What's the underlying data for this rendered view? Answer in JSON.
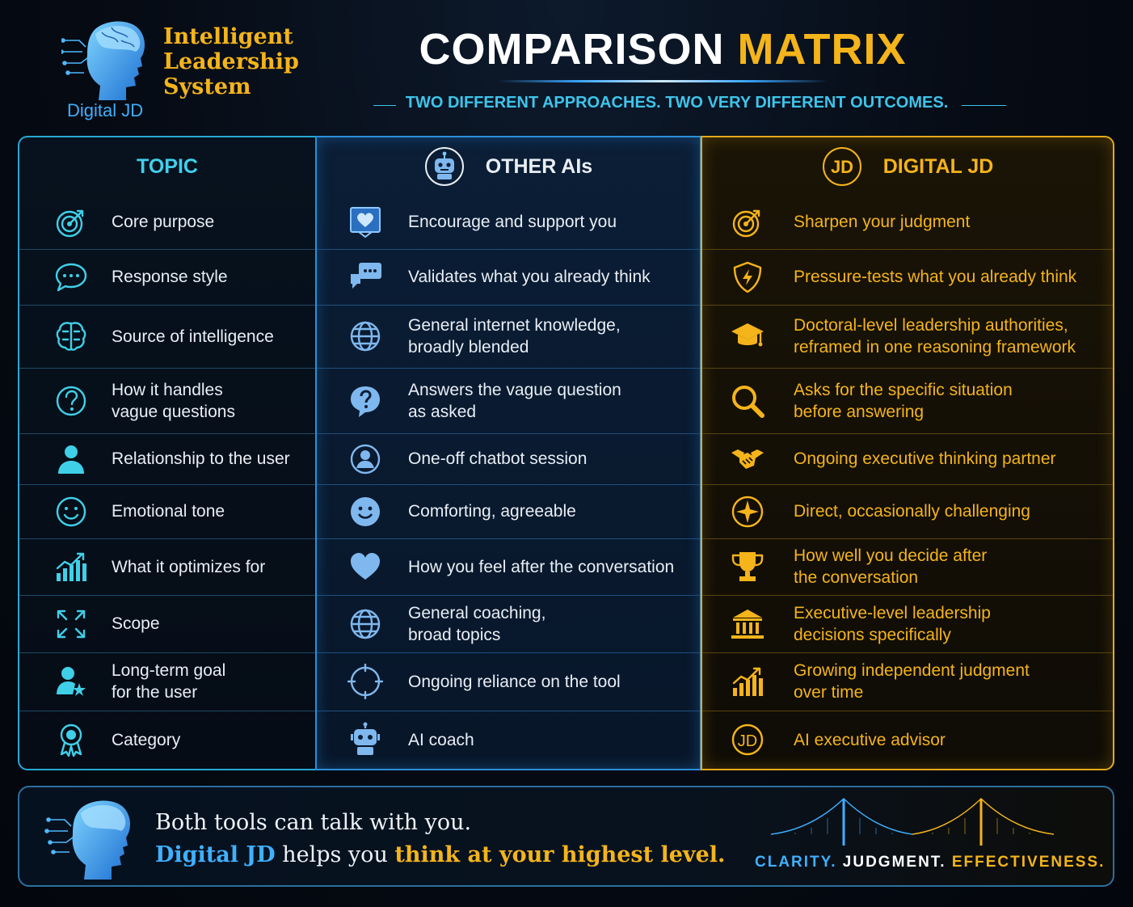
{
  "brand": {
    "title_line1": "Intelligent",
    "title_line2": "Leadership",
    "title_line3": "System",
    "subtitle": "Digital JD"
  },
  "header": {
    "title_main": "COMPARISON",
    "title_accent": "MATRIX",
    "subtitle": "TWO DIFFERENT APPROACHES. TWO VERY DIFFERENT OUTCOMES."
  },
  "columns": {
    "topic": "TOPIC",
    "other": "OTHER AIs",
    "jd": "DIGITAL JD",
    "jd_badge": "JD"
  },
  "rows": [
    {
      "topic": [
        "Core purpose"
      ],
      "topic_icon": "target-icon",
      "other": [
        "Encourage and support you"
      ],
      "other_icon": "heart-message-icon",
      "jd": [
        "Sharpen your judgment"
      ],
      "jd_icon": "target-icon"
    },
    {
      "topic": [
        "Response style"
      ],
      "topic_icon": "chat-bubble-icon",
      "other": [
        "Validates what you already think"
      ],
      "other_icon": "chat-bubbles-icon",
      "jd": [
        "Pressure-tests what you already think"
      ],
      "jd_icon": "shield-icon"
    },
    {
      "topic": [
        "Source of intelligence"
      ],
      "topic_icon": "brain-icon",
      "other": [
        "General internet knowledge,",
        "broadly blended"
      ],
      "other_icon": "globe-icon",
      "jd": [
        "Doctoral-level leadership authorities,",
        "reframed in one reasoning framework"
      ],
      "jd_icon": "graduation-cap-icon"
    },
    {
      "topic": [
        "How it handles",
        "vague questions"
      ],
      "topic_icon": "question-icon",
      "other": [
        "Answers the vague question",
        "as asked"
      ],
      "other_icon": "question-bubble-icon",
      "jd": [
        "Asks for the specific situation",
        "before answering"
      ],
      "jd_icon": "magnifier-icon"
    },
    {
      "topic": [
        "Relationship to the user"
      ],
      "topic_icon": "user-icon",
      "other": [
        "One-off chatbot session"
      ],
      "other_icon": "user-circle-icon",
      "jd": [
        "Ongoing executive thinking partner"
      ],
      "jd_icon": "handshake-icon"
    },
    {
      "topic": [
        "Emotional tone"
      ],
      "topic_icon": "smile-icon",
      "other": [
        "Comforting, agreeable"
      ],
      "other_icon": "smile-face-icon",
      "jd": [
        "Direct, occasionally challenging"
      ],
      "jd_icon": "compass-icon"
    },
    {
      "topic": [
        "What it optimizes for"
      ],
      "topic_icon": "growth-chart-icon",
      "other": [
        "How you feel after the conversation"
      ],
      "other_icon": "heart-icon",
      "jd": [
        "How well you decide after",
        "the conversation"
      ],
      "jd_icon": "trophy-icon"
    },
    {
      "topic": [
        "Scope"
      ],
      "topic_icon": "expand-arrows-icon",
      "other": [
        "General coaching,",
        "broad topics"
      ],
      "other_icon": "globe-icon",
      "jd": [
        "Executive-level leadership",
        "decisions specifically"
      ],
      "jd_icon": "institution-icon"
    },
    {
      "topic": [
        "Long-term goal",
        "for the user"
      ],
      "topic_icon": "user-star-icon",
      "other": [
        "Ongoing reliance on the tool"
      ],
      "other_icon": "cycle-icon",
      "jd": [
        "Growing independent judgment",
        "over time"
      ],
      "jd_icon": "growth-chart-icon"
    },
    {
      "topic": [
        "Category"
      ],
      "topic_icon": "award-ribbon-icon",
      "other": [
        "AI coach"
      ],
      "other_icon": "robot-icon",
      "jd": [
        "AI executive advisor"
      ],
      "jd_icon": "jd-badge-icon"
    }
  ],
  "footer": {
    "line1": "Both tools can talk with you.",
    "line2_brand": "Digital JD",
    "line2_mid": " helps you ",
    "line2_accent": "think at your highest level.",
    "motto_1": "CLARITY.",
    "motto_2": "JUDGMENT.",
    "motto_3": "EFFECTIVENESS."
  },
  "colors": {
    "accent_gold": "#f4b41a",
    "accent_blue": "#3fb0ff",
    "accent_cyan": "#40d0ec"
  }
}
